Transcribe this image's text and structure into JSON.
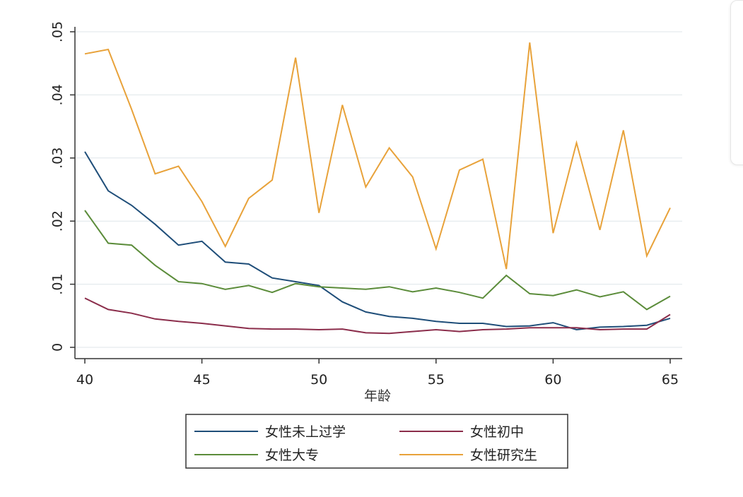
{
  "chart_data": {
    "type": "line",
    "title": "",
    "xlabel": "年龄",
    "ylabel": "",
    "xlim": [
      40,
      65
    ],
    "ylim": [
      0,
      0.05
    ],
    "xticks": [
      40,
      45,
      50,
      55,
      60,
      65
    ],
    "xtick_labels": [
      "40",
      "45",
      "50",
      "55",
      "60",
      "65"
    ],
    "yticks": [
      0,
      0.01,
      0.02,
      0.03,
      0.04,
      0.05
    ],
    "ytick_labels": [
      "0",
      ".01",
      ".02",
      ".03",
      ".04",
      ".05"
    ],
    "grid": true,
    "legend_position": "bottom",
    "x": [
      40,
      41,
      42,
      43,
      44,
      45,
      46,
      47,
      48,
      49,
      50,
      51,
      52,
      53,
      54,
      55,
      56,
      57,
      58,
      59,
      60,
      61,
      62,
      63,
      64,
      65
    ],
    "series": [
      {
        "name": "女性未上过学",
        "color": "#1f4e79",
        "values": [
          0.031,
          0.0248,
          0.0225,
          0.0195,
          0.0162,
          0.0168,
          0.0135,
          0.0132,
          0.011,
          0.0104,
          0.0098,
          0.0072,
          0.0056,
          0.0049,
          0.0046,
          0.0041,
          0.0038,
          0.0038,
          0.0033,
          0.0034,
          0.0039,
          0.0028,
          0.0032,
          0.0033,
          0.0035,
          0.0046
        ]
      },
      {
        "name": "女性初中",
        "color": "#8b2d4b",
        "values": [
          0.0078,
          0.006,
          0.0054,
          0.0045,
          0.0041,
          0.0038,
          0.0034,
          0.003,
          0.0029,
          0.0029,
          0.0028,
          0.0029,
          0.0023,
          0.0022,
          0.0025,
          0.0028,
          0.0025,
          0.0028,
          0.0029,
          0.0031,
          0.0031,
          0.0031,
          0.0028,
          0.0029,
          0.0029,
          0.0052
        ]
      },
      {
        "name": "女性大专",
        "color": "#5b8c3a",
        "values": [
          0.0217,
          0.0165,
          0.0162,
          0.013,
          0.0104,
          0.0101,
          0.0092,
          0.0098,
          0.0087,
          0.0101,
          0.0096,
          0.0094,
          0.0092,
          0.0096,
          0.0088,
          0.0094,
          0.0087,
          0.0078,
          0.0114,
          0.0085,
          0.0082,
          0.0091,
          0.008,
          0.0088,
          0.006,
          0.0081
        ]
      },
      {
        "name": "女性研究生",
        "color": "#e8a23a",
        "values": [
          0.0465,
          0.0472,
          0.0377,
          0.0275,
          0.0287,
          0.0231,
          0.016,
          0.0236,
          0.0265,
          0.0459,
          0.0213,
          0.0384,
          0.0254,
          0.0316,
          0.027,
          0.0156,
          0.0281,
          0.0298,
          0.0124,
          0.0483,
          0.0181,
          0.0324,
          0.0186,
          0.0344,
          0.0145,
          0.0221
        ]
      }
    ]
  }
}
